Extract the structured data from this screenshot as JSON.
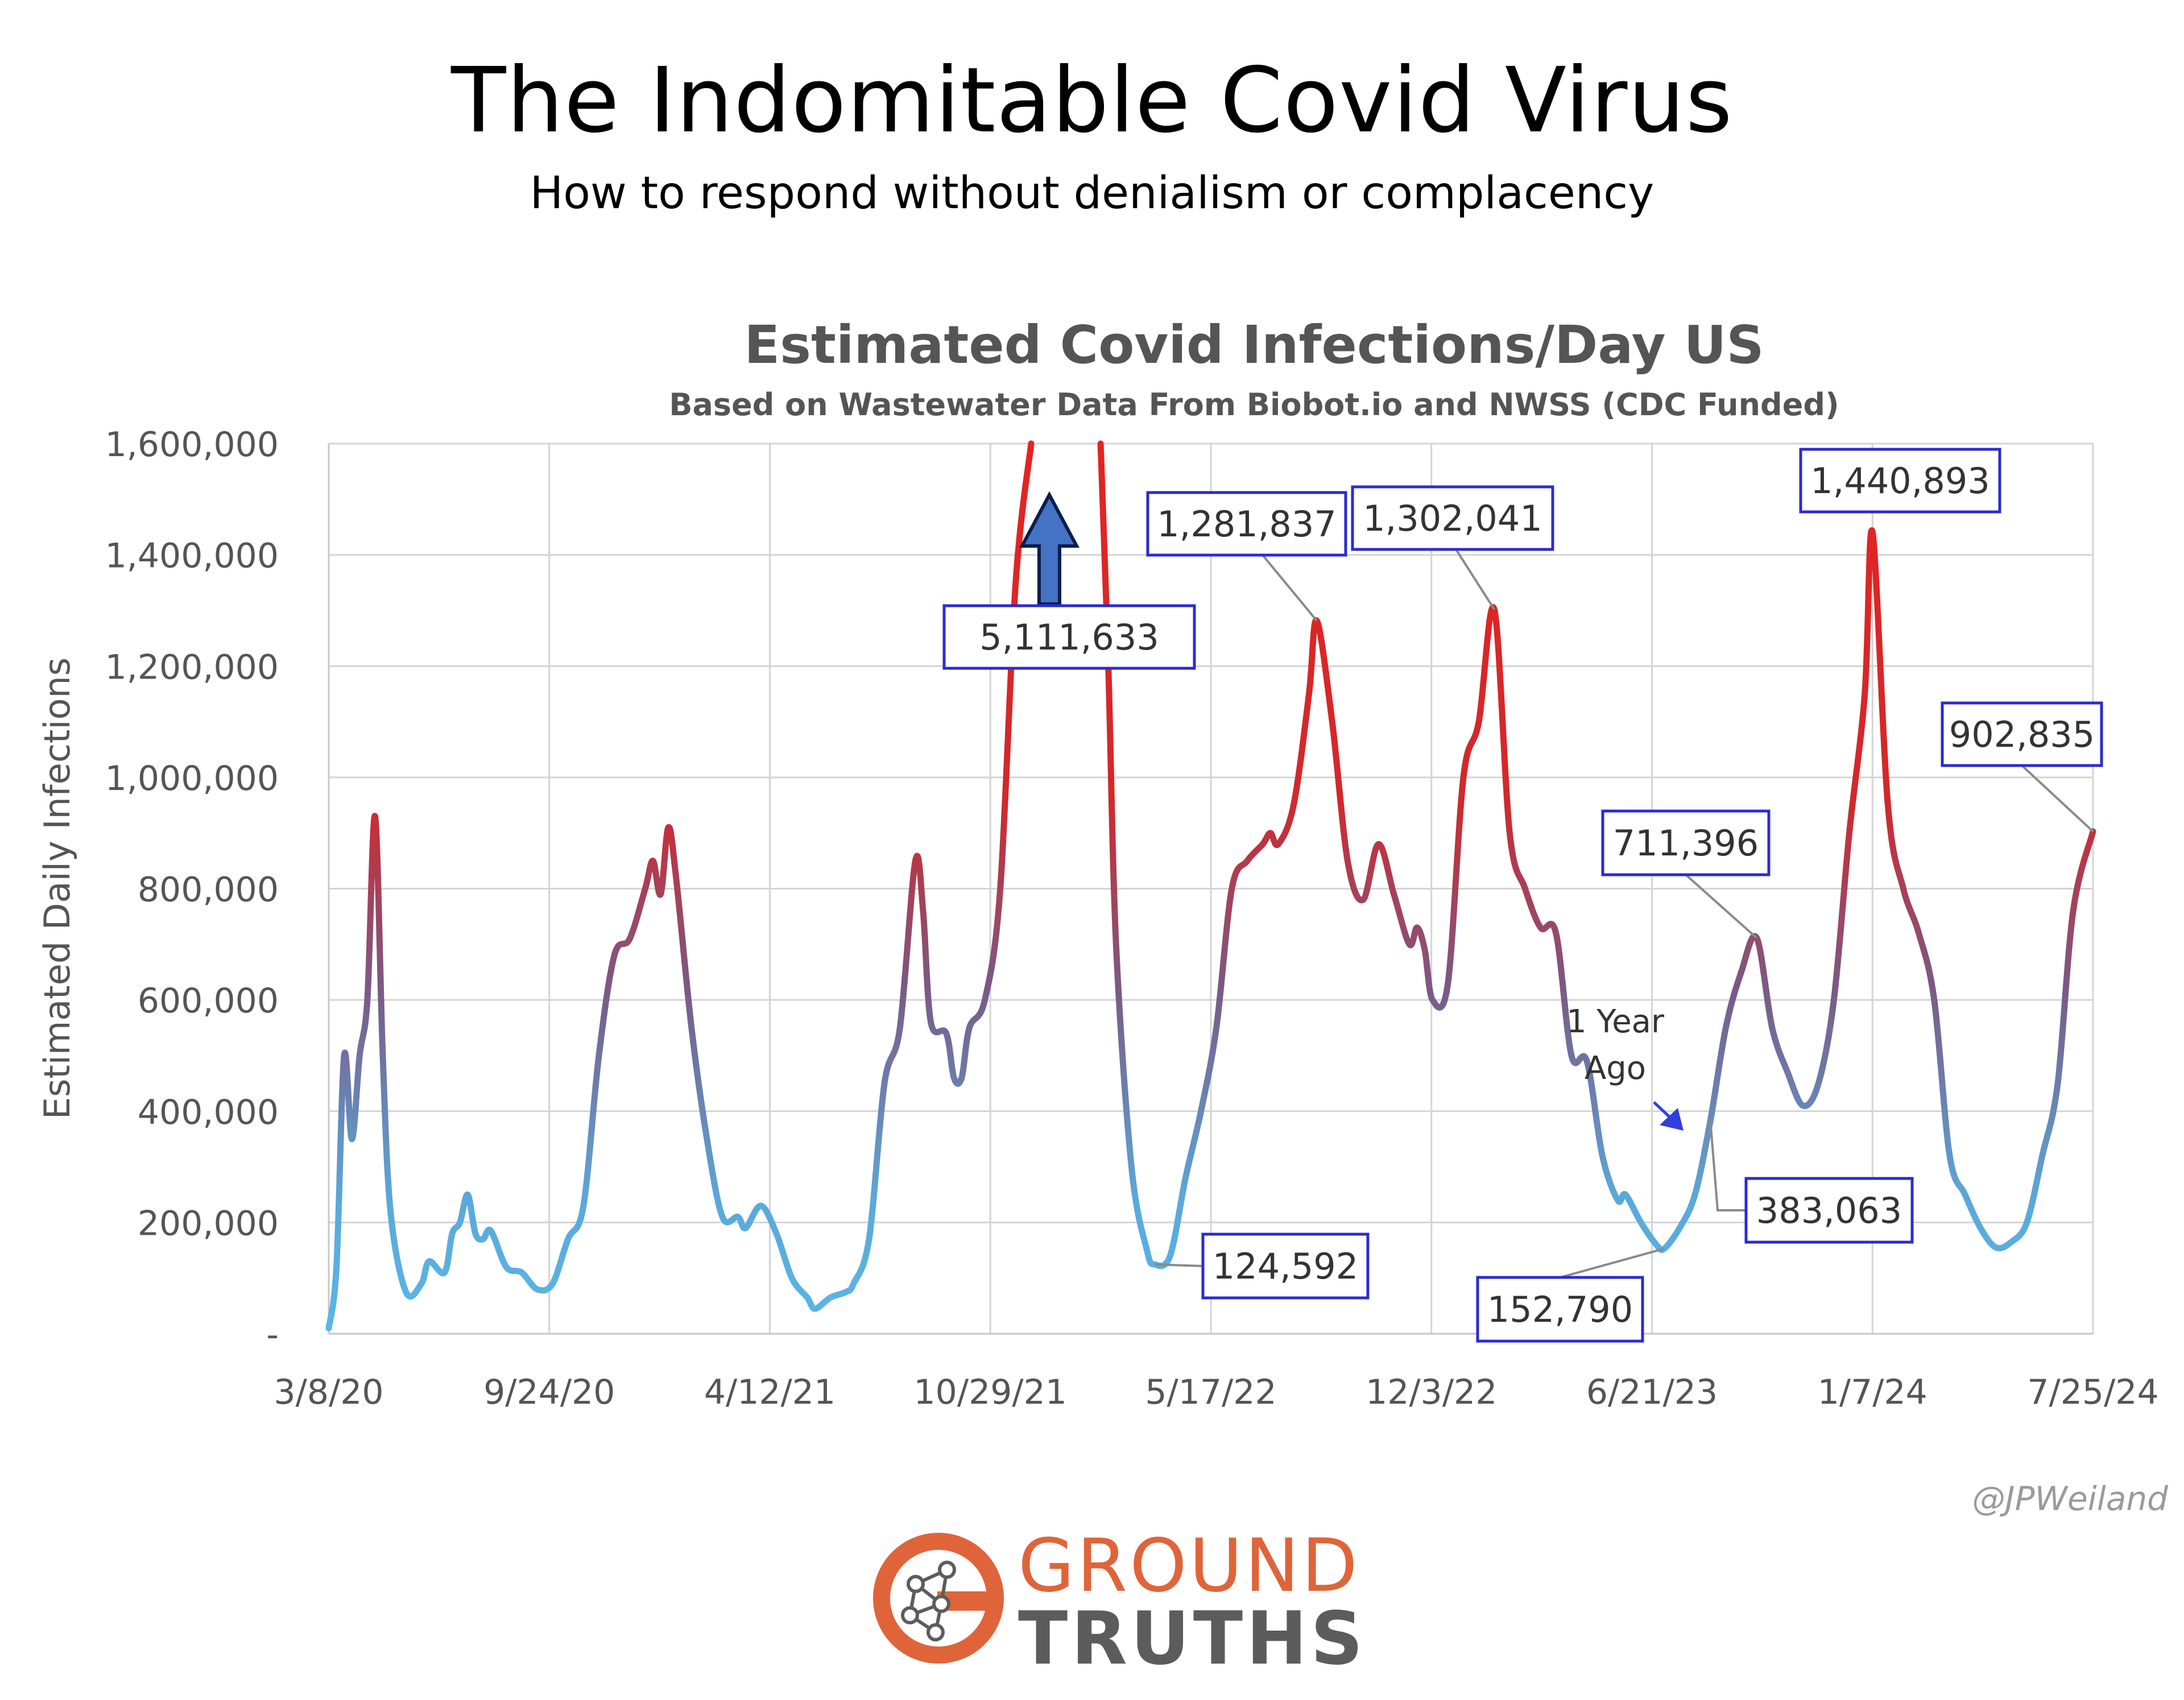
{
  "header": {
    "title": "The Indomitable Covid Virus",
    "subtitle": "How to respond without denialism or complacency"
  },
  "chart_data": {
    "type": "line",
    "title": "Estimated Covid Infections/Day US",
    "subtitle": "Based on Wastewater Data From Biobot.io and NWSS (CDC Funded)",
    "ylabel": "Estimated Daily Infections",
    "xlabel": "",
    "ylim": [
      0,
      1600000
    ],
    "y_ticks": [
      0,
      200000,
      400000,
      600000,
      800000,
      1000000,
      1200000,
      1400000,
      1600000
    ],
    "y_tick_labels": [
      "-",
      "200,000",
      "400,000",
      "600,000",
      "800,000",
      "1,000,000",
      "1,200,000",
      "1,400,000",
      "1,600,000"
    ],
    "x_range": [
      "2020-03-08",
      "2024-07-25"
    ],
    "x_ticks": [
      "2020-03-08",
      "2020-09-24",
      "2021-04-12",
      "2021-10-29",
      "2022-05-17",
      "2022-12-03",
      "2023-06-21",
      "2024-01-07",
      "2024-07-25"
    ],
    "x_tick_labels": [
      "3/8/20",
      "9/24/20",
      "4/12/21",
      "10/29/21",
      "5/17/22",
      "12/3/22",
      "6/21/23",
      "1/7/24",
      "7/25/24"
    ],
    "grid": true,
    "line_color_low": "#5ab6e6",
    "line_color_high": "#e52420",
    "series": [
      {
        "points": [
          [
            "2020-03-08",
            10000
          ],
          [
            "2020-03-15",
            120000
          ],
          [
            "2020-03-22",
            500000
          ],
          [
            "2020-03-29",
            350000
          ],
          [
            "2020-04-05",
            500000
          ],
          [
            "2020-04-12",
            600000
          ],
          [
            "2020-04-19",
            930000
          ],
          [
            "2020-04-26",
            500000
          ],
          [
            "2020-05-03",
            220000
          ],
          [
            "2020-05-17",
            75000
          ],
          [
            "2020-05-31",
            90000
          ],
          [
            "2020-06-07",
            130000
          ],
          [
            "2020-06-21",
            110000
          ],
          [
            "2020-06-28",
            180000
          ],
          [
            "2020-07-05",
            200000
          ],
          [
            "2020-07-12",
            250000
          ],
          [
            "2020-07-19",
            180000
          ],
          [
            "2020-07-26",
            170000
          ],
          [
            "2020-08-02",
            185000
          ],
          [
            "2020-08-16",
            120000
          ],
          [
            "2020-08-30",
            110000
          ],
          [
            "2020-09-13",
            80000
          ],
          [
            "2020-09-27",
            90000
          ],
          [
            "2020-10-11",
            170000
          ],
          [
            "2020-10-25",
            230000
          ],
          [
            "2020-11-08",
            500000
          ],
          [
            "2020-11-22",
            680000
          ],
          [
            "2020-12-06",
            710000
          ],
          [
            "2020-12-20",
            800000
          ],
          [
            "2020-12-27",
            850000
          ],
          [
            "2021-01-03",
            790000
          ],
          [
            "2021-01-10",
            910000
          ],
          [
            "2021-01-17",
            820000
          ],
          [
            "2021-01-31",
            550000
          ],
          [
            "2021-02-14",
            350000
          ],
          [
            "2021-02-28",
            210000
          ],
          [
            "2021-03-14",
            210000
          ],
          [
            "2021-03-21",
            190000
          ],
          [
            "2021-04-04",
            230000
          ],
          [
            "2021-04-18",
            180000
          ],
          [
            "2021-05-02",
            100000
          ],
          [
            "2021-05-16",
            65000
          ],
          [
            "2021-05-23",
            45000
          ],
          [
            "2021-06-06",
            65000
          ],
          [
            "2021-06-20",
            75000
          ],
          [
            "2021-06-27",
            90000
          ],
          [
            "2021-07-11",
            170000
          ],
          [
            "2021-07-25",
            450000
          ],
          [
            "2021-08-08",
            550000
          ],
          [
            "2021-08-22",
            850000
          ],
          [
            "2021-08-29",
            760000
          ],
          [
            "2021-09-05",
            560000
          ],
          [
            "2021-09-19",
            540000
          ],
          [
            "2021-09-26",
            460000
          ],
          [
            "2021-10-03",
            460000
          ],
          [
            "2021-10-10",
            550000
          ],
          [
            "2021-10-24",
            600000
          ],
          [
            "2021-11-07",
            800000
          ],
          [
            "2021-11-21",
            1350000
          ],
          [
            "2021-12-05",
            1600000
          ]
        ]
      },
      {
        "points": [
          [
            "2022-02-06",
            1600000
          ],
          [
            "2022-02-13",
            1200000
          ],
          [
            "2022-02-20",
            700000
          ],
          [
            "2022-03-06",
            300000
          ],
          [
            "2022-03-20",
            150000
          ],
          [
            "2022-03-27",
            124592
          ],
          [
            "2022-04-10",
            140000
          ],
          [
            "2022-04-24",
            280000
          ],
          [
            "2022-05-08",
            400000
          ],
          [
            "2022-05-22",
            550000
          ],
          [
            "2022-06-05",
            800000
          ],
          [
            "2022-06-19",
            850000
          ],
          [
            "2022-07-03",
            880000
          ],
          [
            "2022-07-10",
            900000
          ],
          [
            "2022-07-17",
            880000
          ],
          [
            "2022-07-31",
            950000
          ],
          [
            "2022-08-14",
            1150000
          ],
          [
            "2022-08-21",
            1281837
          ],
          [
            "2022-09-04",
            1100000
          ],
          [
            "2022-09-18",
            850000
          ],
          [
            "2022-10-02",
            780000
          ],
          [
            "2022-10-16",
            880000
          ],
          [
            "2022-10-30",
            790000
          ],
          [
            "2022-11-13",
            700000
          ],
          [
            "2022-11-20",
            730000
          ],
          [
            "2022-11-27",
            690000
          ],
          [
            "2022-12-04",
            600000
          ],
          [
            "2022-12-18",
            630000
          ],
          [
            "2023-01-01",
            1000000
          ],
          [
            "2023-01-15",
            1100000
          ],
          [
            "2023-01-29",
            1302041
          ],
          [
            "2023-02-12",
            900000
          ],
          [
            "2023-02-26",
            800000
          ],
          [
            "2023-03-12",
            730000
          ],
          [
            "2023-03-26",
            720000
          ],
          [
            "2023-04-09",
            500000
          ],
          [
            "2023-04-23",
            490000
          ],
          [
            "2023-05-07",
            320000
          ],
          [
            "2023-05-21",
            240000
          ],
          [
            "2023-05-28",
            250000
          ],
          [
            "2023-06-11",
            200000
          ],
          [
            "2023-06-25",
            160000
          ],
          [
            "2023-07-02",
            152790
          ],
          [
            "2023-07-16",
            190000
          ],
          [
            "2023-07-30",
            250000
          ],
          [
            "2023-08-13",
            383063
          ],
          [
            "2023-08-27",
            550000
          ],
          [
            "2023-09-10",
            650000
          ],
          [
            "2023-09-24",
            711396
          ],
          [
            "2023-10-08",
            550000
          ],
          [
            "2023-10-22",
            470000
          ],
          [
            "2023-11-05",
            410000
          ],
          [
            "2023-11-19",
            450000
          ],
          [
            "2023-12-03",
            600000
          ],
          [
            "2023-12-17",
            900000
          ],
          [
            "2023-12-31",
            1150000
          ],
          [
            "2024-01-07",
            1440893
          ],
          [
            "2024-01-21",
            950000
          ],
          [
            "2024-02-04",
            800000
          ],
          [
            "2024-02-18",
            720000
          ],
          [
            "2024-03-03",
            600000
          ],
          [
            "2024-03-17",
            320000
          ],
          [
            "2024-03-31",
            250000
          ],
          [
            "2024-04-14",
            190000
          ],
          [
            "2024-04-28",
            155000
          ],
          [
            "2024-05-12",
            165000
          ],
          [
            "2024-05-26",
            200000
          ],
          [
            "2024-06-09",
            320000
          ],
          [
            "2024-06-23",
            450000
          ],
          [
            "2024-07-07",
            760000
          ],
          [
            "2024-07-25",
            902835
          ]
        ]
      }
    ],
    "annotations": [
      {
        "label": "5,111,633",
        "date": "2022-01-08",
        "value": 1600000,
        "arrow": "up"
      },
      {
        "label": "124,592",
        "date": "2022-03-27",
        "value": 124592
      },
      {
        "label": "1,281,837",
        "date": "2022-08-21",
        "value": 1281837
      },
      {
        "label": "1,302,041",
        "date": "2023-01-29",
        "value": 1302041
      },
      {
        "label": "152,790",
        "date": "2023-07-02",
        "value": 152790
      },
      {
        "label": "383,063",
        "date": "2023-08-13",
        "value": 383063
      },
      {
        "label": "711,396",
        "date": "2023-09-24",
        "value": 711396
      },
      {
        "label": "1,440,893",
        "date": "2024-01-07",
        "value": 1440893
      },
      {
        "label": "902,835",
        "date": "2024-07-25",
        "value": 902835
      }
    ],
    "callout": {
      "lines": [
        "1 Year",
        "Ago"
      ],
      "arrow_color": "#2f3fe0"
    },
    "credit": "@JPWeiland"
  },
  "logo": {
    "word1": "GROUND",
    "word2": "TRUTHS",
    "colors": {
      "orange": "#e0643a",
      "gray": "#5c5c5c"
    }
  }
}
